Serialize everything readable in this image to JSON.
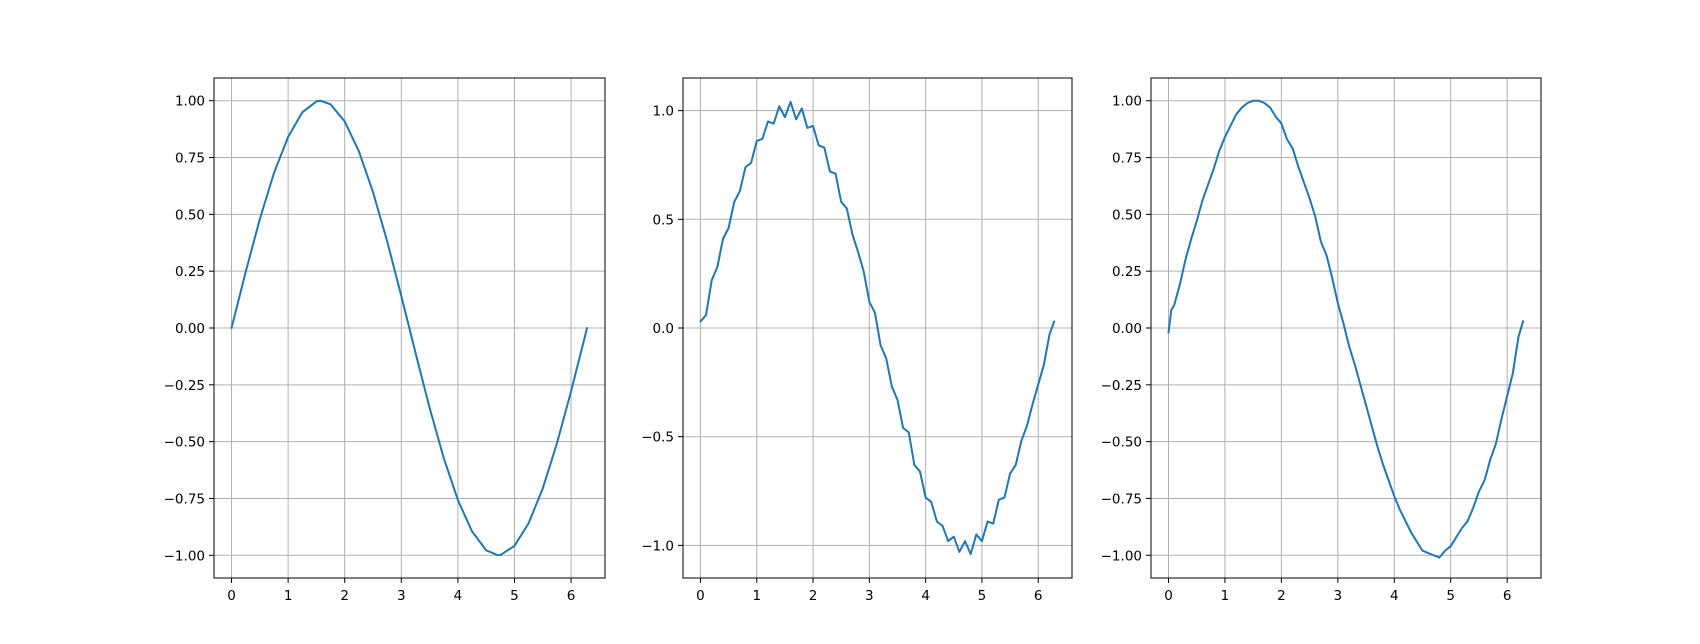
{
  "chart_data": [
    {
      "type": "line",
      "title": "",
      "xlabel": "",
      "ylabel": "",
      "xlim": [
        -0.31,
        6.6
      ],
      "ylim": [
        -1.1,
        1.1
      ],
      "xticks": [
        0,
        1,
        2,
        3,
        4,
        5,
        6
      ],
      "xtick_labels": [
        "0",
        "1",
        "2",
        "3",
        "4",
        "5",
        "6"
      ],
      "yticks": [
        -1.0,
        -0.75,
        -0.5,
        -0.25,
        0.0,
        0.25,
        0.5,
        0.75,
        1.0
      ],
      "ytick_labels": [
        "−1.00",
        "−0.75",
        "−0.50",
        "−0.25",
        "0.00",
        "0.25",
        "0.50",
        "0.75",
        "1.00"
      ],
      "grid": true,
      "color": "#1f77b4",
      "series": [
        {
          "x": [
            0,
            0.25,
            0.5,
            0.75,
            1.0,
            1.25,
            1.5,
            1.571,
            1.75,
            2.0,
            2.25,
            2.5,
            2.75,
            3.0,
            3.142,
            3.25,
            3.5,
            3.75,
            4.0,
            4.25,
            4.5,
            4.712,
            4.75,
            5.0,
            5.25,
            5.5,
            5.75,
            6.0,
            6.283
          ],
          "y": [
            0,
            0.247,
            0.479,
            0.682,
            0.841,
            0.949,
            0.997,
            1.0,
            0.984,
            0.909,
            0.778,
            0.598,
            0.382,
            0.141,
            0.0,
            -0.108,
            -0.351,
            -0.572,
            -0.757,
            -0.895,
            -0.978,
            -1.0,
            -0.999,
            -0.959,
            -0.859,
            -0.706,
            -0.508,
            -0.279,
            0.0
          ]
        }
      ]
    },
    {
      "type": "line",
      "title": "",
      "xlabel": "",
      "ylabel": "",
      "xlim": [
        -0.31,
        6.6
      ],
      "ylim": [
        -1.15,
        1.15
      ],
      "xticks": [
        0,
        1,
        2,
        3,
        4,
        5,
        6
      ],
      "xtick_labels": [
        "0",
        "1",
        "2",
        "3",
        "4",
        "5",
        "6"
      ],
      "yticks": [
        -1.0,
        -0.5,
        0.0,
        0.5,
        1.0
      ],
      "ytick_labels": [
        "−1.0",
        "−0.5",
        "0.0",
        "0.5",
        "1.0"
      ],
      "grid": true,
      "color": "#1f77b4",
      "series": [
        {
          "x": [
            0,
            0.1,
            0.2,
            0.3,
            0.4,
            0.5,
            0.6,
            0.7,
            0.8,
            0.9,
            1.0,
            1.1,
            1.2,
            1.3,
            1.4,
            1.5,
            1.6,
            1.7,
            1.8,
            1.9,
            2.0,
            2.1,
            2.2,
            2.3,
            2.4,
            2.5,
            2.6,
            2.7,
            2.8,
            2.9,
            3.0,
            3.1,
            3.2,
            3.3,
            3.4,
            3.5,
            3.6,
            3.7,
            3.8,
            3.9,
            4.0,
            4.1,
            4.2,
            4.3,
            4.4,
            4.5,
            4.6,
            4.7,
            4.8,
            4.9,
            5.0,
            5.1,
            5.2,
            5.3,
            5.4,
            5.5,
            5.6,
            5.7,
            5.8,
            5.9,
            6.0,
            6.1,
            6.2,
            6.283
          ],
          "y": [
            0.03,
            0.06,
            0.22,
            0.28,
            0.41,
            0.46,
            0.58,
            0.63,
            0.74,
            0.76,
            0.86,
            0.87,
            0.95,
            0.94,
            1.02,
            0.97,
            1.04,
            0.96,
            1.01,
            0.92,
            0.93,
            0.84,
            0.83,
            0.72,
            0.71,
            0.58,
            0.55,
            0.43,
            0.35,
            0.26,
            0.12,
            0.07,
            -0.08,
            -0.14,
            -0.27,
            -0.33,
            -0.46,
            -0.48,
            -0.63,
            -0.66,
            -0.78,
            -0.8,
            -0.89,
            -0.91,
            -0.98,
            -0.96,
            -1.03,
            -0.98,
            -1.04,
            -0.95,
            -0.98,
            -0.89,
            -0.9,
            -0.79,
            -0.78,
            -0.67,
            -0.63,
            -0.52,
            -0.45,
            -0.35,
            -0.26,
            -0.17,
            -0.03,
            0.03
          ]
        }
      ]
    },
    {
      "type": "line",
      "title": "",
      "xlabel": "",
      "ylabel": "",
      "xlim": [
        -0.31,
        6.6
      ],
      "ylim": [
        -1.1,
        1.1
      ],
      "xticks": [
        0,
        1,
        2,
        3,
        4,
        5,
        6
      ],
      "xtick_labels": [
        "0",
        "1",
        "2",
        "3",
        "4",
        "5",
        "6"
      ],
      "yticks": [
        -1.0,
        -0.75,
        -0.5,
        -0.25,
        0.0,
        0.25,
        0.5,
        0.75,
        1.0
      ],
      "ytick_labels": [
        "−1.00",
        "−0.75",
        "−0.50",
        "−0.25",
        "0.00",
        "0.25",
        "0.50",
        "0.75",
        "1.00"
      ],
      "grid": true,
      "color": "#1f77b4",
      "series": [
        {
          "x": [
            0,
            0.05,
            0.1,
            0.2,
            0.3,
            0.4,
            0.5,
            0.6,
            0.7,
            0.8,
            0.9,
            1.0,
            1.1,
            1.2,
            1.3,
            1.4,
            1.5,
            1.6,
            1.7,
            1.8,
            1.9,
            2.0,
            2.1,
            2.2,
            2.3,
            2.4,
            2.5,
            2.6,
            2.7,
            2.8,
            2.9,
            3.0,
            3.1,
            3.2,
            3.3,
            3.4,
            3.5,
            3.6,
            3.7,
            3.8,
            3.9,
            4.0,
            4.1,
            4.2,
            4.3,
            4.4,
            4.5,
            4.6,
            4.7,
            4.8,
            4.9,
            5.0,
            5.1,
            5.2,
            5.3,
            5.4,
            5.5,
            5.6,
            5.7,
            5.8,
            5.9,
            6.0,
            6.1,
            6.2,
            6.283
          ],
          "y": [
            -0.02,
            0.08,
            0.1,
            0.19,
            0.3,
            0.39,
            0.47,
            0.56,
            0.63,
            0.7,
            0.78,
            0.84,
            0.89,
            0.94,
            0.97,
            0.99,
            1.0,
            1.0,
            0.99,
            0.97,
            0.93,
            0.9,
            0.83,
            0.79,
            0.71,
            0.64,
            0.57,
            0.49,
            0.38,
            0.32,
            0.22,
            0.11,
            0.02,
            -0.08,
            -0.16,
            -0.25,
            -0.34,
            -0.43,
            -0.52,
            -0.6,
            -0.67,
            -0.74,
            -0.8,
            -0.85,
            -0.9,
            -0.94,
            -0.98,
            -0.99,
            -1.0,
            -1.01,
            -0.98,
            -0.96,
            -0.92,
            -0.88,
            -0.85,
            -0.79,
            -0.72,
            -0.67,
            -0.58,
            -0.51,
            -0.4,
            -0.3,
            -0.2,
            -0.04,
            0.03
          ]
        }
      ]
    }
  ]
}
